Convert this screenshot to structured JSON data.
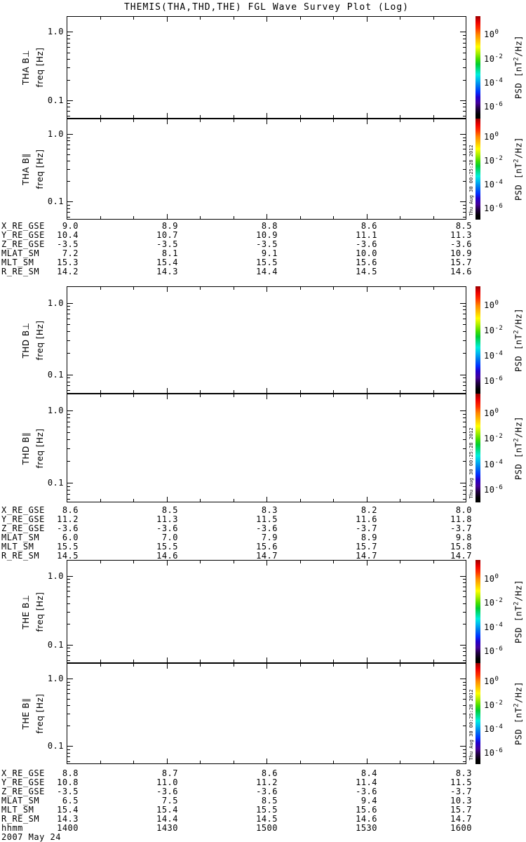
{
  "title": "THEMIS(THA,THD,THE) FGL Wave Survey Plot (Log)",
  "yaxis": {
    "label": "freq [Hz]",
    "ticks": [
      "1.0",
      "0.1"
    ]
  },
  "colorbar": {
    "label_pre": "PSD [nT",
    "label_sup": "2",
    "label_post": "/Hz]",
    "ticks": [
      {
        "base": "10",
        "exp": "0"
      },
      {
        "base": "10",
        "exp": "-2"
      },
      {
        "base": "10",
        "exp": "-4"
      },
      {
        "base": "10",
        "exp": "-6"
      }
    ],
    "colors": [
      [
        "0%",
        "#990000"
      ],
      [
        "6%",
        "#ee0000"
      ],
      [
        "12%",
        "#ff3300"
      ],
      [
        "18%",
        "#ff8800"
      ],
      [
        "25%",
        "#ffcc00"
      ],
      [
        "30%",
        "#ffff00"
      ],
      [
        "36%",
        "#aaee00"
      ],
      [
        "42%",
        "#44dd00"
      ],
      [
        "47%",
        "#00cc33"
      ],
      [
        "52%",
        "#00dd88"
      ],
      [
        "57%",
        "#00eedd"
      ],
      [
        "62%",
        "#00bbee"
      ],
      [
        "68%",
        "#0077ee"
      ],
      [
        "74%",
        "#0033ff"
      ],
      [
        "79%",
        "#2200cc"
      ],
      [
        "85%",
        "#440099"
      ],
      [
        "90%",
        "#220044"
      ],
      [
        "96%",
        "#000000"
      ],
      [
        "100%",
        "#000000"
      ]
    ]
  },
  "timestamp": "Thu Aug 30 00:25:28 2012",
  "xaxis": {
    "label": "hhmm",
    "ticks": [
      "1400",
      "1430",
      "1500",
      "1530",
      "1600"
    ],
    "date": "2007 May 24"
  },
  "groups": [
    {
      "probe": "THA",
      "panels": [
        {
          "label": "THA B⊥"
        },
        {
          "label": "THA B∥"
        }
      ],
      "table": [
        {
          "label": "X_RE_GSE",
          "values": [
            "9.0",
            "8.9",
            "8.8",
            "8.6",
            "8.5"
          ]
        },
        {
          "label": "Y_RE_GSE",
          "values": [
            "10.4",
            "10.7",
            "10.9",
            "11.1",
            "11.3"
          ]
        },
        {
          "label": "Z_RE_GSE",
          "values": [
            "-3.5",
            "-3.5",
            "-3.5",
            "-3.6",
            "-3.6"
          ]
        },
        {
          "label": "MLAT_SM",
          "values": [
            "7.2",
            "8.1",
            "9.1",
            "10.0",
            "10.9"
          ]
        },
        {
          "label": "MLT_SM",
          "values": [
            "15.3",
            "15.4",
            "15.5",
            "15.6",
            "15.7"
          ]
        },
        {
          "label": "R_RE_SM",
          "values": [
            "14.2",
            "14.3",
            "14.4",
            "14.5",
            "14.6"
          ]
        }
      ]
    },
    {
      "probe": "THD",
      "panels": [
        {
          "label": "THD B⊥"
        },
        {
          "label": "THD B∥"
        }
      ],
      "table": [
        {
          "label": "X_RE_GSE",
          "values": [
            "8.6",
            "8.5",
            "8.3",
            "8.2",
            "8.0"
          ]
        },
        {
          "label": "Y_RE_GSE",
          "values": [
            "11.2",
            "11.3",
            "11.5",
            "11.6",
            "11.8"
          ]
        },
        {
          "label": "Z_RE_GSE",
          "values": [
            "-3.6",
            "-3.6",
            "-3.6",
            "-3.7",
            "-3.7"
          ]
        },
        {
          "label": "MLAT_SM",
          "values": [
            "6.0",
            "7.0",
            "7.9",
            "8.9",
            "9.8"
          ]
        },
        {
          "label": "MLT_SM",
          "values": [
            "15.5",
            "15.5",
            "15.6",
            "15.7",
            "15.8"
          ]
        },
        {
          "label": "R_RE_SM",
          "values": [
            "14.5",
            "14.6",
            "14.7",
            "14.7",
            "14.7"
          ]
        }
      ]
    },
    {
      "probe": "THE",
      "panels": [
        {
          "label": "THE B⊥"
        },
        {
          "label": "THE B∥"
        }
      ],
      "table": [
        {
          "label": "X_RE_GSE",
          "values": [
            "8.8",
            "8.7",
            "8.6",
            "8.4",
            "8.3"
          ]
        },
        {
          "label": "Y_RE_GSE",
          "values": [
            "10.8",
            "11.0",
            "11.2",
            "11.4",
            "11.5"
          ]
        },
        {
          "label": "Z_RE_GSE",
          "values": [
            "-3.5",
            "-3.6",
            "-3.6",
            "-3.6",
            "-3.7"
          ]
        },
        {
          "label": "MLAT_SM",
          "values": [
            "6.5",
            "7.5",
            "8.5",
            "9.4",
            "10.3"
          ]
        },
        {
          "label": "MLT_SM",
          "values": [
            "15.4",
            "15.4",
            "15.5",
            "15.6",
            "15.7"
          ]
        },
        {
          "label": "R_RE_SM",
          "values": [
            "14.3",
            "14.4",
            "14.5",
            "14.6",
            "14.7"
          ]
        }
      ]
    }
  ],
  "chart_data": {
    "type": "heatmap",
    "subtype": "spectrogram-grid",
    "title": "THEMIS(THA,THD,THE) FGL Wave Survey Plot (Log)",
    "panels": [
      {
        "label": "THA B⊥",
        "ylabel": "freq [Hz]",
        "yscale": "log",
        "ylim": [
          0.054,
          1.7
        ],
        "yticks": [
          1.0,
          0.1
        ],
        "values": []
      },
      {
        "label": "THA B∥",
        "ylabel": "freq [Hz]",
        "yscale": "log",
        "ylim": [
          0.054,
          1.7
        ],
        "yticks": [
          1.0,
          0.1
        ],
        "values": []
      },
      {
        "label": "THD B⊥",
        "ylabel": "freq [Hz]",
        "yscale": "log",
        "ylim": [
          0.054,
          1.7
        ],
        "yticks": [
          1.0,
          0.1
        ],
        "values": []
      },
      {
        "label": "THD B∥",
        "ylabel": "freq [Hz]",
        "yscale": "log",
        "ylim": [
          0.054,
          1.7
        ],
        "yticks": [
          1.0,
          0.1
        ],
        "values": []
      },
      {
        "label": "THE B⊥",
        "ylabel": "freq [Hz]",
        "yscale": "log",
        "ylim": [
          0.054,
          1.7
        ],
        "yticks": [
          1.0,
          0.1
        ],
        "values": []
      },
      {
        "label": "THE B∥",
        "ylabel": "freq [Hz]",
        "yscale": "log",
        "ylim": [
          0.054,
          1.7
        ],
        "yticks": [
          1.0,
          0.1
        ],
        "values": []
      }
    ],
    "x": {
      "label": "hhmm",
      "ticks": [
        "1400",
        "1430",
        "1500",
        "1530",
        "1600"
      ],
      "minor_step_min": 10,
      "date": "2007 May 24"
    },
    "colorbar": {
      "label": "PSD [nT²/Hz]",
      "scale": "log",
      "ticks": [
        1,
        0.01,
        0.0001,
        1e-06
      ]
    },
    "note": "All six spectrogram panels are blank (no PSD data rendered)"
  }
}
